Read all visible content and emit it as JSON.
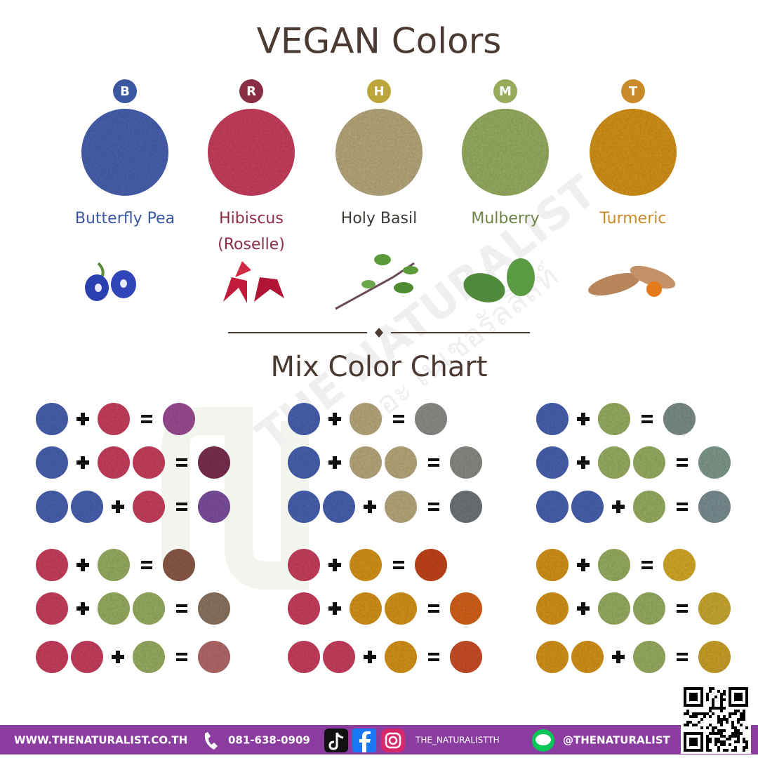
{
  "header": {
    "title": "VEGAN Colors"
  },
  "ingredients": [
    {
      "code": "B",
      "name_lines": [
        "Butterfly Pea"
      ],
      "color": "#4a62b0",
      "badge_color": "#3b57a0",
      "text_color": "#3b57a0"
    },
    {
      "code": "R",
      "name_lines": [
        "Hibiscus",
        "(Roselle)"
      ],
      "color": "#c8415f",
      "badge_color": "#8a2e45",
      "text_color": "#8a2e45"
    },
    {
      "code": "H",
      "name_lines": [
        "Holy Basil"
      ],
      "color": "#b7a97d",
      "badge_color": "#bca53a",
      "text_color": "#3e3a36"
    },
    {
      "code": "M",
      "name_lines": [
        "Mulberry"
      ],
      "color": "#98ad62",
      "badge_color": "#97aa5a",
      "text_color": "#6f8445"
    },
    {
      "code": "T",
      "name_lines": [
        "Turmeric"
      ],
      "color": "#d4931f",
      "badge_color": "#c98a2a",
      "text_color": "#c98a2a"
    }
  ],
  "mix_chart": {
    "title": "Mix Color Chart",
    "columns": [
      [
        {
          "left": [
            "B"
          ],
          "right": [
            "R"
          ],
          "result": "#9b4e93"
        },
        {
          "left": [
            "B"
          ],
          "right": [
            "R",
            "R"
          ],
          "result": "#7a3350"
        },
        {
          "left": [
            "B",
            "B"
          ],
          "right": [
            "R"
          ],
          "result": "#7b4f9e"
        },
        {
          "left": [
            "R"
          ],
          "right": [
            "M"
          ],
          "result": "#8b5a4a"
        },
        {
          "left": [
            "R"
          ],
          "right": [
            "M",
            "M"
          ],
          "result": "#8c7462"
        },
        {
          "left": [
            "R",
            "R"
          ],
          "right": [
            "M"
          ],
          "result": "#b26a6a"
        }
      ],
      [
        {
          "left": [
            "B"
          ],
          "right": [
            "H"
          ],
          "result": "#8c8c88"
        },
        {
          "left": [
            "B"
          ],
          "right": [
            "H",
            "H"
          ],
          "result": "#8a8a84"
        },
        {
          "left": [
            "B",
            "B"
          ],
          "right": [
            "H"
          ],
          "result": "#6e7478"
        },
        {
          "left": [
            "R"
          ],
          "right": [
            "T"
          ],
          "result": "#c2441e"
        },
        {
          "left": [
            "R"
          ],
          "right": [
            "T",
            "T"
          ],
          "result": "#d4621e"
        },
        {
          "left": [
            "R",
            "R"
          ],
          "right": [
            "T"
          ],
          "result": "#c9502a"
        }
      ],
      [
        {
          "left": [
            "B"
          ],
          "right": [
            "M"
          ],
          "result": "#7c8c88"
        },
        {
          "left": [
            "B"
          ],
          "right": [
            "M",
            "M"
          ],
          "result": "#7f9a8c"
        },
        {
          "left": [
            "B",
            "B"
          ],
          "right": [
            "M"
          ],
          "result": "#7a8e90"
        },
        {
          "left": [
            "T"
          ],
          "right": [
            "M"
          ],
          "result": "#d3a82a"
        },
        {
          "left": [
            "T"
          ],
          "right": [
            "M",
            "M"
          ],
          "result": "#c9a830"
        },
        {
          "left": [
            "T",
            "T"
          ],
          "right": [
            "M"
          ],
          "result": "#c9a02a"
        }
      ]
    ]
  },
  "watermark": {
    "brand": "THE NATURALIST",
    "thai": "เดอะ เนเชอรัลลิสท์"
  },
  "footer": {
    "website": "WWW.THENATURALIST.CO.TH",
    "phone": "081-638-0909",
    "social": "THE_NATURALISTTH",
    "line": "@THENATURALIST"
  }
}
